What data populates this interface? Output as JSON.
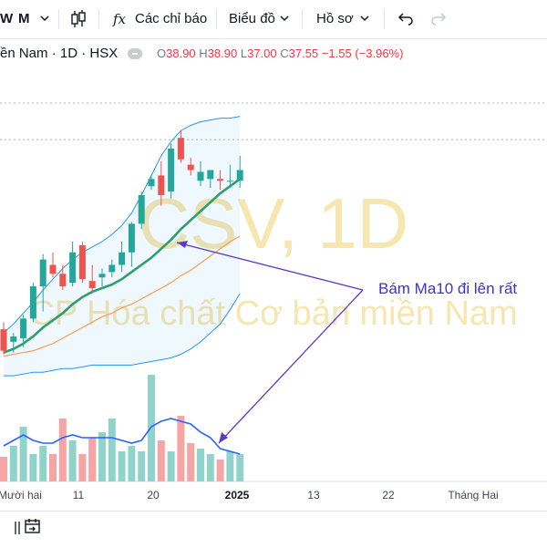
{
  "toolbar": {
    "interval_w": "W",
    "interval_m": "M",
    "indicators_label": "Các chỉ báo",
    "chart_type_label": "Biểu đồ",
    "profile_label": "Hồ sơ",
    "fx_glyph": "fx"
  },
  "legend": {
    "symbol": "ền Nam · 1D · HSX",
    "o_key": "O",
    "o_val": "38.90",
    "h_key": "H",
    "h_val": "38.90",
    "l_key": "L",
    "l_val": "37.00",
    "c_key": "C",
    "c_val": "37.55",
    "change": "−1.55 (−3.96%)"
  },
  "watermark": {
    "big": "CSV, 1D",
    "small": "CP Hóa chất Cơ bản miền Nam"
  },
  "annotation": {
    "text": "Bám Ma10 đi lên rất"
  },
  "colors": {
    "up": "#26a69a",
    "down": "#ef5350",
    "ma_fast": "#2e9e6b",
    "ma_slow": "#f7a35c",
    "band": "#2196f3",
    "volume_line": "#2962ff",
    "annotation": "#5b3cc4",
    "watermark": "#f3e0a1"
  },
  "chart_data": {
    "type": "candlestick",
    "x_tick_labels": [
      "Mười hai",
      "11",
      "20",
      "2025",
      "13",
      "22",
      "Tháng Hai"
    ],
    "candles": [
      {
        "o": 30.0,
        "h": 30.4,
        "l": 28.6,
        "c": 28.8
      },
      {
        "o": 29.3,
        "h": 29.8,
        "l": 28.7,
        "c": 29.6
      },
      {
        "o": 29.5,
        "h": 30.8,
        "l": 29.0,
        "c": 30.6
      },
      {
        "o": 30.6,
        "h": 32.6,
        "l": 30.4,
        "c": 32.4
      },
      {
        "o": 32.4,
        "h": 34.2,
        "l": 31.0,
        "c": 33.9
      },
      {
        "o": 33.6,
        "h": 34.3,
        "l": 32.9,
        "c": 33.1
      },
      {
        "o": 33.1,
        "h": 33.6,
        "l": 32.2,
        "c": 32.4
      },
      {
        "o": 32.6,
        "h": 34.9,
        "l": 32.4,
        "c": 34.3
      },
      {
        "o": 34.7,
        "h": 34.9,
        "l": 32.6,
        "c": 32.8
      },
      {
        "o": 32.7,
        "h": 33.6,
        "l": 32.0,
        "c": 32.3
      },
      {
        "o": 32.9,
        "h": 33.4,
        "l": 32.4,
        "c": 33.1
      },
      {
        "o": 33.2,
        "h": 33.9,
        "l": 32.9,
        "c": 33.6
      },
      {
        "o": 33.6,
        "h": 34.9,
        "l": 33.2,
        "c": 34.3
      },
      {
        "o": 34.3,
        "h": 36.0,
        "l": 33.5,
        "c": 35.9
      },
      {
        "o": 35.9,
        "h": 37.7,
        "l": 35.6,
        "c": 37.5
      },
      {
        "o": 38.0,
        "h": 38.6,
        "l": 37.8,
        "c": 38.4
      },
      {
        "o": 38.6,
        "h": 39.4,
        "l": 36.9,
        "c": 37.5
      },
      {
        "o": 37.7,
        "h": 40.4,
        "l": 37.3,
        "c": 40.1
      },
      {
        "o": 40.7,
        "h": 41.1,
        "l": 39.3,
        "c": 39.5
      },
      {
        "o": 39.2,
        "h": 39.6,
        "l": 38.6,
        "c": 38.9
      },
      {
        "o": 38.3,
        "h": 39.4,
        "l": 38.0,
        "c": 38.8
      },
      {
        "o": 38.4,
        "h": 38.9,
        "l": 37.9,
        "c": 38.9
      },
      {
        "o": 38.4,
        "h": 38.9,
        "l": 37.8,
        "c": 38.3
      },
      {
        "o": 38.3,
        "h": 39.2,
        "l": 37.9,
        "c": 38.3
      },
      {
        "o": 38.3,
        "h": 39.7,
        "l": 37.9,
        "c": 38.9
      }
    ],
    "ma_fast": [
      28.7,
      28.9,
      29.2,
      29.6,
      30.1,
      30.5,
      30.9,
      31.4,
      31.8,
      32.1,
      32.3,
      32.5,
      32.8,
      33.2,
      33.6,
      34.0,
      34.5,
      35.0,
      35.6,
      36.1,
      36.6,
      37.1,
      37.6,
      38.0,
      38.4
    ],
    "ma_slow": [
      28.5,
      28.6,
      28.7,
      28.8,
      29.0,
      29.2,
      29.5,
      29.8,
      30.1,
      30.4,
      30.7,
      30.9,
      31.2,
      31.4,
      31.7,
      32.0,
      32.3,
      32.6,
      33.0,
      33.3,
      33.7,
      34.1,
      34.5,
      34.9,
      35.2
    ],
    "band_upper": [
      29.8,
      30.3,
      30.9,
      31.5,
      32.2,
      32.8,
      33.4,
      33.9,
      34.3,
      34.6,
      34.9,
      35.3,
      35.8,
      36.5,
      37.5,
      38.6,
      39.7,
      40.5,
      41.1,
      41.4,
      41.6,
      41.7,
      41.8,
      41.8,
      41.9
    ],
    "band_lower": [
      27.4,
      27.4,
      27.5,
      27.6,
      27.6,
      27.7,
      27.8,
      27.8,
      27.9,
      28.0,
      28.0,
      28.0,
      28.0,
      28.0,
      28.1,
      28.2,
      28.3,
      28.4,
      28.6,
      28.9,
      29.3,
      29.8,
      30.3,
      31.1,
      32.0
    ],
    "volume": [
      0.9,
      1.3,
      2.0,
      1.0,
      1.3,
      1.0,
      2.3,
      1.5,
      1.0,
      1.6,
      1.8,
      2.3,
      1.1,
      1.3,
      1.1,
      3.9,
      1.5,
      1.1,
      2.4,
      1.4,
      1.2,
      1.0,
      0.8,
      1.1,
      1.0
    ],
    "volume_ma": [
      1.3,
      1.5,
      1.7,
      1.5,
      1.4,
      1.4,
      1.6,
      1.7,
      1.6,
      1.6,
      1.6,
      1.6,
      1.5,
      1.4,
      1.5,
      2.0,
      2.2,
      2.3,
      2.2,
      2.1,
      1.8,
      1.6,
      1.2,
      1.1,
      1.0
    ],
    "price_range": [
      27.0,
      42.8
    ],
    "dotted_levels": [
      40.6
    ]
  }
}
